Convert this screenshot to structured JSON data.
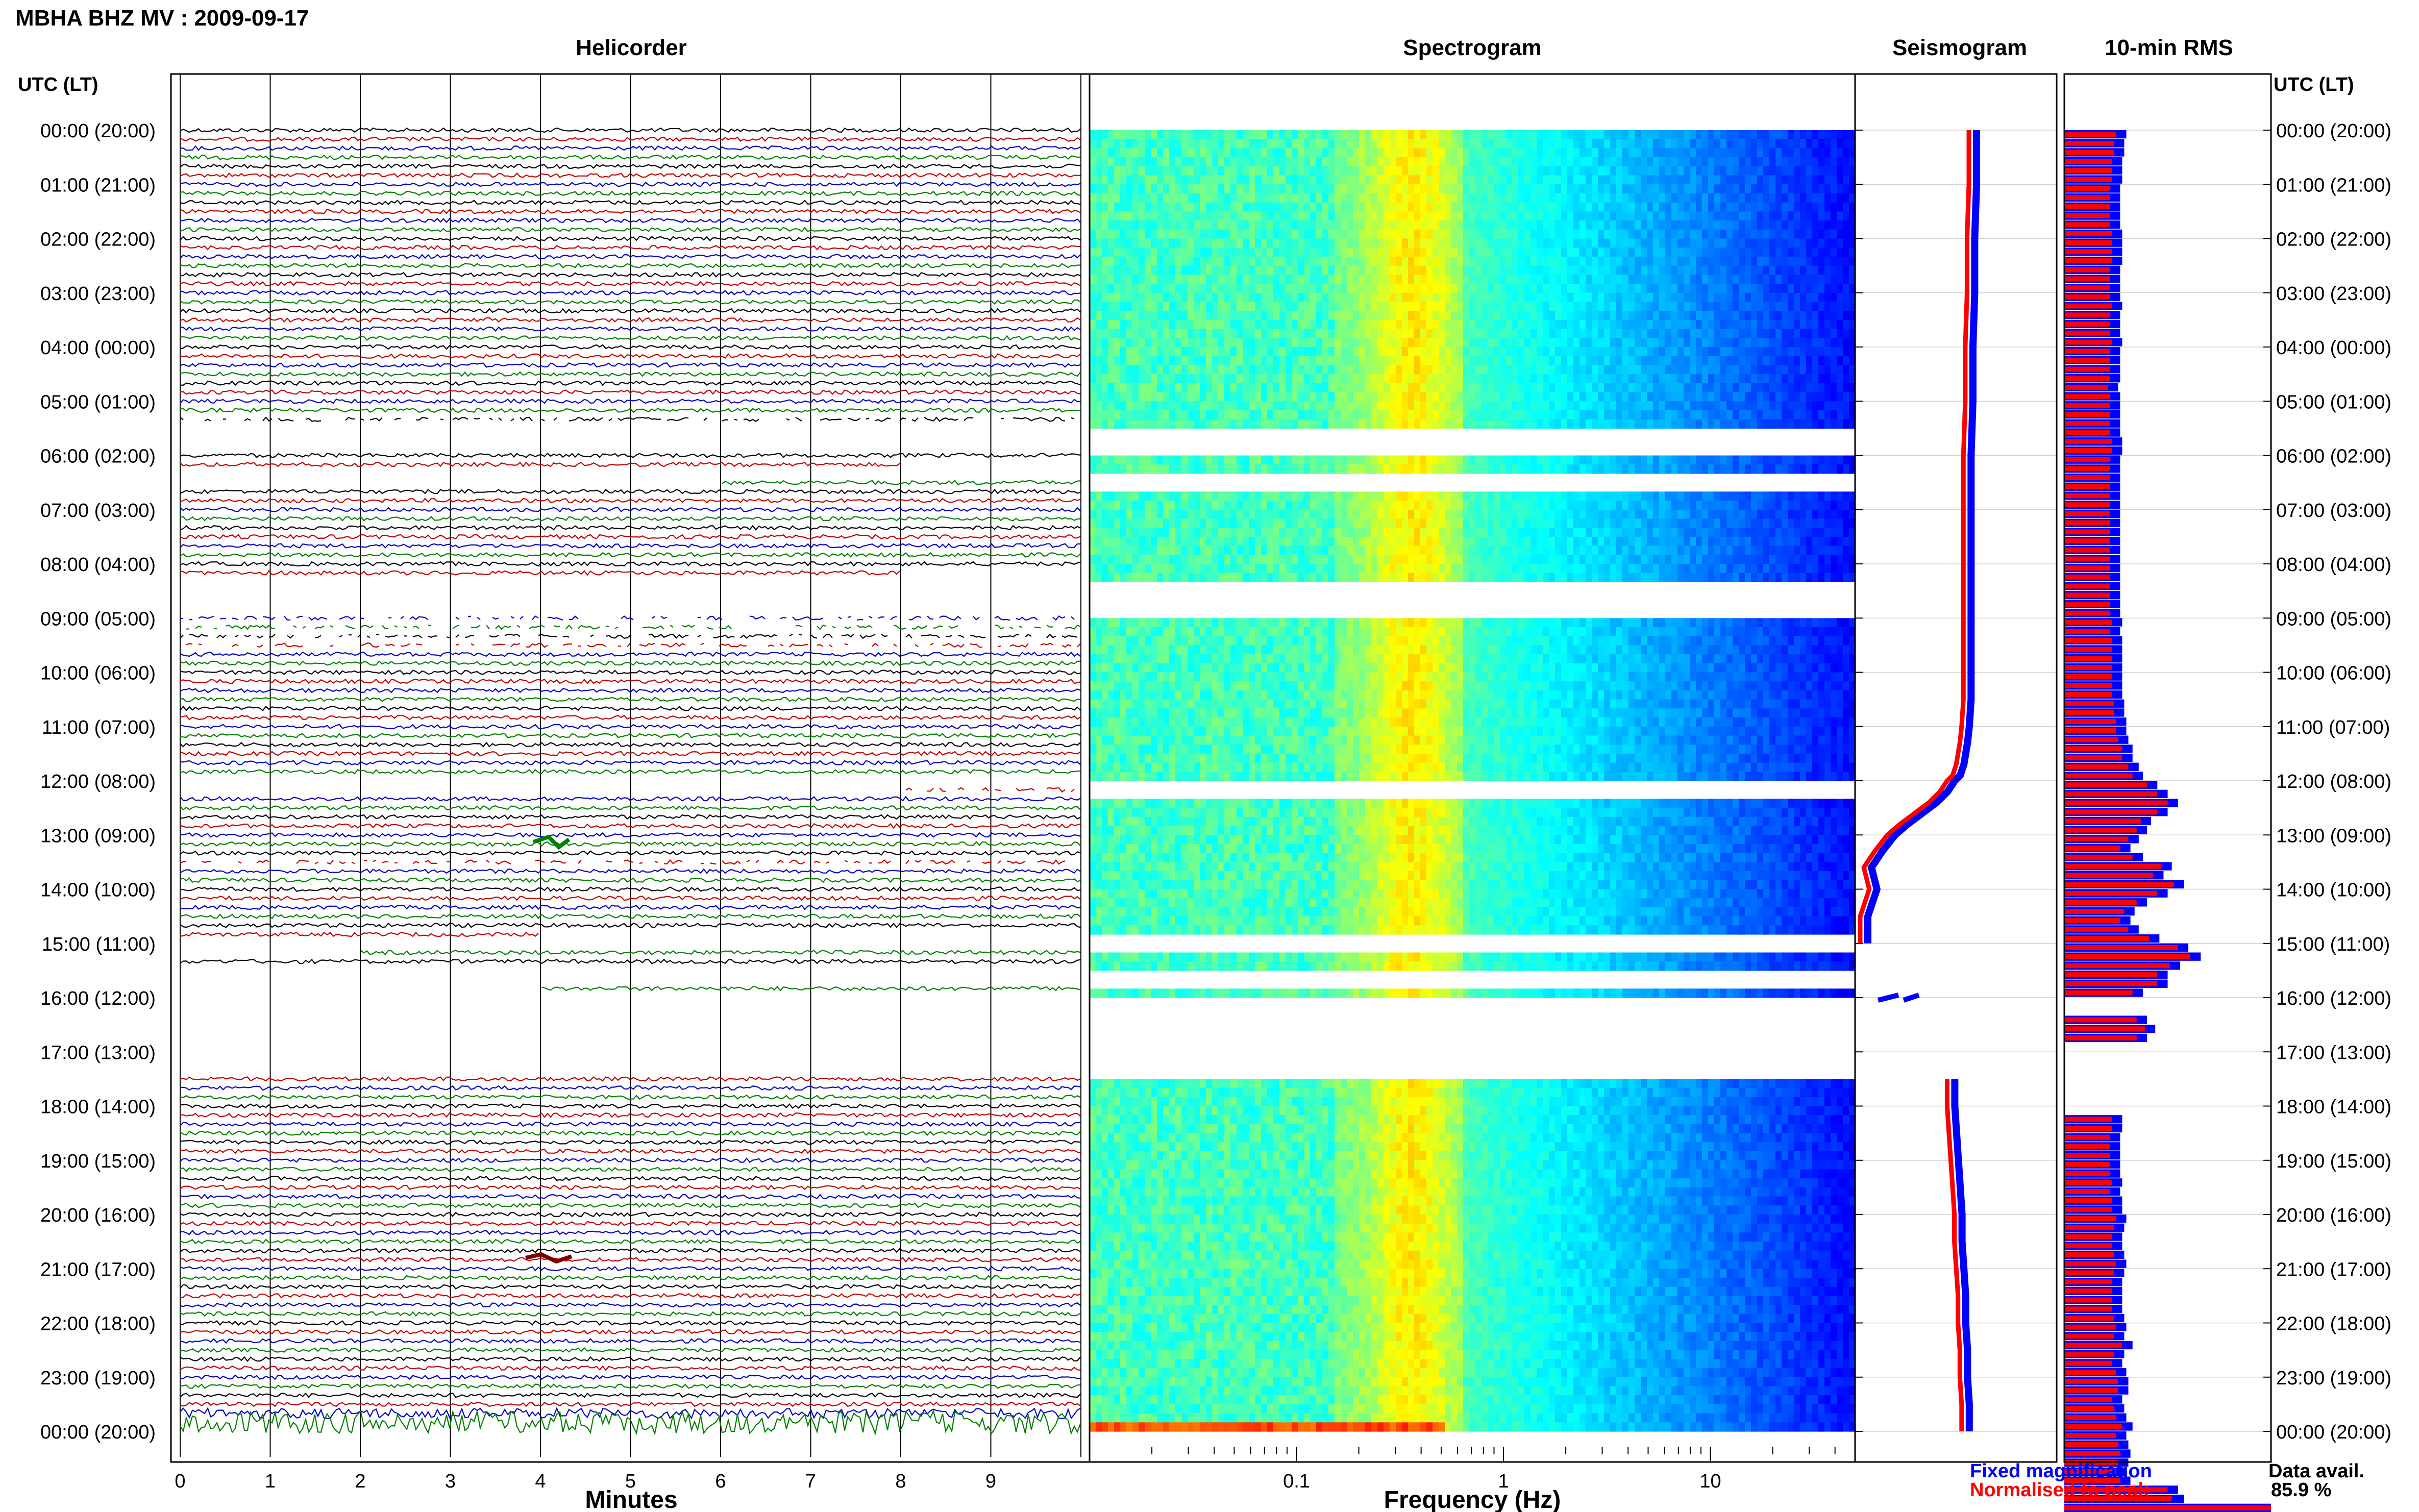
{
  "chart_data": {
    "type": "heatmap",
    "title": "MBHA BHZ MV : 2009-09-17",
    "panels": {
      "helicorder": {
        "title": "Helicorder",
        "xlabel": "Minutes",
        "xticks": [
          "0",
          "1",
          "2",
          "3",
          "4",
          "5",
          "6",
          "7",
          "8",
          "9"
        ],
        "xlim": [
          0,
          10
        ],
        "trace_colors": [
          "#000000",
          "#c00000",
          "#0000c0",
          "#008000"
        ]
      },
      "spectrogram": {
        "title": "Spectrogram",
        "xlabel": "Frequency (Hz)",
        "xscale": "log",
        "xlim": [
          0.01,
          50
        ],
        "xticks": [
          "0.1",
          "1",
          "10"
        ],
        "colormap": "jet"
      },
      "seismogram": {
        "title": "Seismogram",
        "legend": [
          {
            "label": "Fixed magnification",
            "color": "#0000ff"
          },
          {
            "label": "Normalised to peak",
            "color": "#ff0000"
          }
        ]
      },
      "rms": {
        "title": "10-min RMS",
        "series_colors": [
          "#0000ff",
          "#ff0000"
        ]
      }
    },
    "y_axis_label": "UTC (LT)",
    "hours": [
      "00:00 (20:00)",
      "01:00 (21:00)",
      "02:00 (22:00)",
      "03:00 (23:00)",
      "04:00 (00:00)",
      "05:00 (01:00)",
      "06:00 (02:00)",
      "07:00 (03:00)",
      "08:00 (04:00)",
      "09:00 (05:00)",
      "10:00 (06:00)",
      "11:00 (07:00)",
      "12:00 (08:00)",
      "13:00 (09:00)",
      "14:00 (10:00)",
      "15:00 (11:00)",
      "16:00 (12:00)",
      "17:00 (13:00)",
      "18:00 (14:00)",
      "19:00 (15:00)",
      "20:00 (16:00)",
      "21:00 (17:00)",
      "22:00 (18:00)",
      "23:00 (19:00)",
      "00:00 (20:00)"
    ],
    "data_gaps_hours": [
      [
        5.5,
        6.0
      ],
      [
        6.3,
        6.6
      ],
      [
        8.3,
        8.9
      ],
      [
        8.9,
        9.0
      ],
      [
        12.0,
        12.3
      ],
      [
        14.9,
        15.2
      ],
      [
        15.5,
        15.9
      ],
      [
        16.0,
        17.5
      ]
    ],
    "rms_blue": [
      0.3,
      0.29,
      0.29,
      0.28,
      0.28,
      0.28,
      0.27,
      0.27,
      0.27,
      0.27,
      0.27,
      0.28,
      0.28,
      0.28,
      0.28,
      0.27,
      0.27,
      0.27,
      0.27,
      0.28,
      0.27,
      0.27,
      0.27,
      0.28,
      0.27,
      0.27,
      0.27,
      0.27,
      0.26,
      0.27,
      0.27,
      0.27,
      0.27,
      0.27,
      0.28,
      0.28,
      0.27,
      0.27,
      0.27,
      0.27,
      0.27,
      0.27,
      0.27,
      0.27,
      0.27,
      0.27,
      0.27,
      0.27,
      0.27,
      0.27,
      0.27,
      0.27,
      0.27,
      0.27,
      0.28,
      0.27,
      0.28,
      0.28,
      0.28,
      0.28,
      0.28,
      0.28,
      0.28,
      0.29,
      0.29,
      0.3,
      0.3,
      0.31,
      0.33,
      0.33,
      0.36,
      0.38,
      0.45,
      0.5,
      0.55,
      0.5,
      0.42,
      0.4,
      0.36,
      0.32,
      0.38,
      0.52,
      0.48,
      0.58,
      0.5,
      0.4,
      0.34,
      0.32,
      0.36,
      0.46,
      0.6,
      0.66,
      0.56,
      0.5,
      0.5,
      0.38,
      0.0,
      0.0,
      0.4,
      0.44,
      0.4,
      0.0,
      0.0,
      0.0,
      0.0,
      0.0,
      0.0,
      0.0,
      0.0,
      0.28,
      0.28,
      0.27,
      0.27,
      0.27,
      0.27,
      0.27,
      0.28,
      0.27,
      0.28,
      0.28,
      0.3,
      0.29,
      0.28,
      0.28,
      0.29,
      0.3,
      0.29,
      0.28,
      0.28,
      0.28,
      0.28,
      0.29,
      0.3,
      0.29,
      0.33,
      0.29,
      0.28,
      0.3,
      0.31,
      0.31,
      0.28,
      0.29,
      0.3,
      0.33,
      0.3,
      0.31,
      0.32,
      0.31,
      0.3,
      0.32,
      0.55,
      0.58,
      1.0
    ],
    "rms_red": [
      0.25,
      0.24,
      0.24,
      0.23,
      0.23,
      0.23,
      0.22,
      0.22,
      0.22,
      0.22,
      0.22,
      0.23,
      0.23,
      0.23,
      0.23,
      0.22,
      0.22,
      0.22,
      0.22,
      0.23,
      0.22,
      0.22,
      0.22,
      0.23,
      0.22,
      0.22,
      0.22,
      0.22,
      0.21,
      0.22,
      0.22,
      0.22,
      0.22,
      0.22,
      0.23,
      0.23,
      0.22,
      0.22,
      0.22,
      0.22,
      0.22,
      0.22,
      0.22,
      0.22,
      0.22,
      0.22,
      0.22,
      0.22,
      0.22,
      0.22,
      0.22,
      0.22,
      0.22,
      0.22,
      0.23,
      0.22,
      0.23,
      0.23,
      0.23,
      0.23,
      0.23,
      0.23,
      0.23,
      0.24,
      0.24,
      0.25,
      0.25,
      0.26,
      0.28,
      0.28,
      0.31,
      0.33,
      0.4,
      0.45,
      0.5,
      0.45,
      0.37,
      0.35,
      0.31,
      0.27,
      0.33,
      0.47,
      0.43,
      0.53,
      0.45,
      0.35,
      0.29,
      0.27,
      0.31,
      0.41,
      0.55,
      0.61,
      0.51,
      0.45,
      0.45,
      0.33,
      0.0,
      0.0,
      0.35,
      0.39,
      0.35,
      0.0,
      0.0,
      0.0,
      0.0,
      0.0,
      0.0,
      0.0,
      0.0,
      0.23,
      0.23,
      0.22,
      0.22,
      0.22,
      0.22,
      0.22,
      0.23,
      0.22,
      0.23,
      0.23,
      0.25,
      0.24,
      0.23,
      0.23,
      0.24,
      0.25,
      0.24,
      0.23,
      0.23,
      0.23,
      0.23,
      0.24,
      0.25,
      0.24,
      0.28,
      0.24,
      0.23,
      0.25,
      0.26,
      0.26,
      0.23,
      0.24,
      0.25,
      0.28,
      0.25,
      0.26,
      0.27,
      0.26,
      0.25,
      0.27,
      0.5,
      0.52,
      1.0
    ],
    "seismogram_profile_x": [
      0.6,
      0.6,
      0.59,
      0.59,
      0.58,
      0.58,
      0.57,
      0.57,
      0.57,
      0.57,
      0.57,
      0.57,
      0.56,
      0.55,
      0.54,
      0.53,
      0.51,
      0.48,
      0.44,
      0.38,
      0.3,
      0.22,
      0.15,
      0.08,
      0.02,
      0.05,
      0.0,
      0.0,
      0.48,
      0.48,
      0.49,
      0.5,
      0.51,
      0.52,
      0.52,
      0.53,
      0.54,
      0.54,
      0.55,
      0.55,
      0.56,
      0.56
    ],
    "seismogram_profile_hour": [
      0.0,
      1.0,
      2.0,
      3.0,
      4.0,
      5.0,
      6.0,
      7.0,
      8.0,
      9.0,
      10.0,
      10.5,
      11.0,
      11.3,
      11.5,
      11.7,
      11.9,
      12.0,
      12.2,
      12.4,
      12.6,
      12.8,
      13.0,
      13.3,
      13.6,
      14.0,
      14.5,
      15.0,
      17.5,
      18.0,
      18.5,
      19.0,
      19.5,
      20.0,
      20.5,
      21.0,
      21.5,
      22.0,
      22.5,
      23.0,
      23.5,
      24.0
    ],
    "footer": {
      "legend_fixed": "Fixed magnification",
      "legend_normalised": "Normalised to peak",
      "data_avail_label": "Data avail.",
      "data_avail_value": "85.9 %"
    }
  }
}
